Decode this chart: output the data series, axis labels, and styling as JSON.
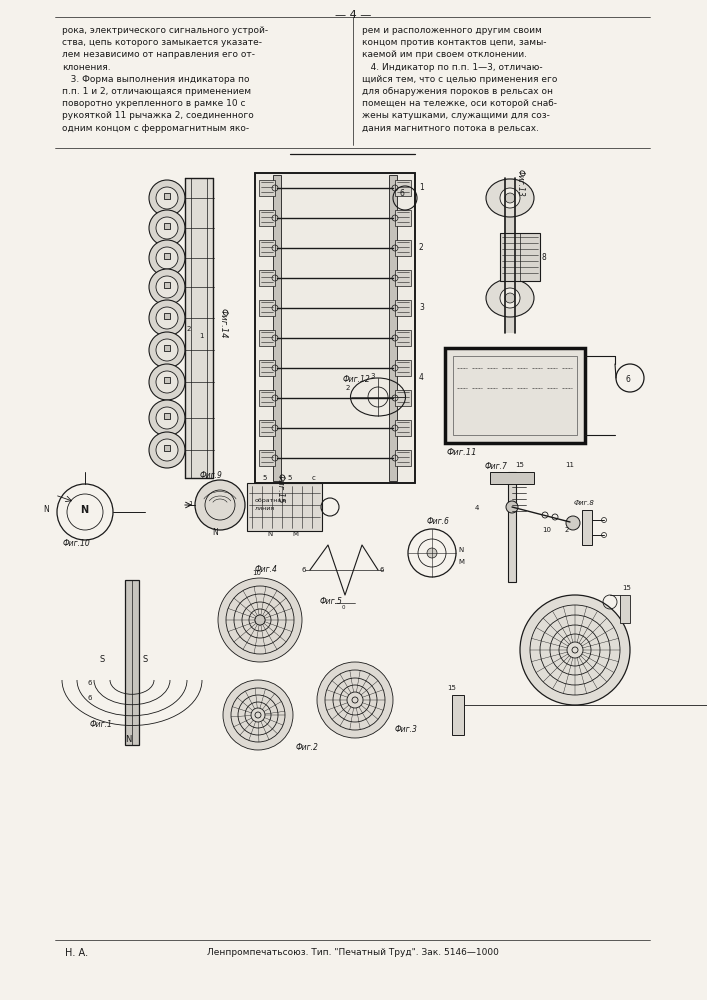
{
  "page_width": 7.07,
  "page_height": 10.0,
  "bg_color": "#f5f2ec",
  "text_color": "#1a1a1a",
  "line_color": "#1a1a1a",
  "header_text": "— 4 —",
  "col1_text": [
    "рока, электрического сигнального устрой-",
    "ства, цепь которого замыкается указате-",
    "лем независимо от направления его от-",
    "клонения.",
    "   3. Форма выполнения индикатора по",
    "п.п. 1 и 2, отличающаяся применением",
    "поворотно укрепленного в рамке 10 с",
    "рукояткой 11 рычажка 2, соединенного",
    "одним концом с ферромагнитным яко-"
  ],
  "col2_text": [
    "рем и расположенного другим своим",
    "концом против контактов цепи, замы-",
    "каемой им при своем отклонении.",
    "   4. Индикатор по п.п. 1—3, отличаю-",
    "щийся тем, что с целью применения его",
    "для обнаружения пороков в рельсах он",
    "помещен на тележке, оси которой снаб-",
    "жены катушками, служащими для соз-",
    "дания магнитного потока в рельсах."
  ],
  "footer_left": "Н. А.",
  "footer_right": "Ленпромпечатьсоюз. Тип. \"Печатный Труд\". Зак. 5146—1000"
}
